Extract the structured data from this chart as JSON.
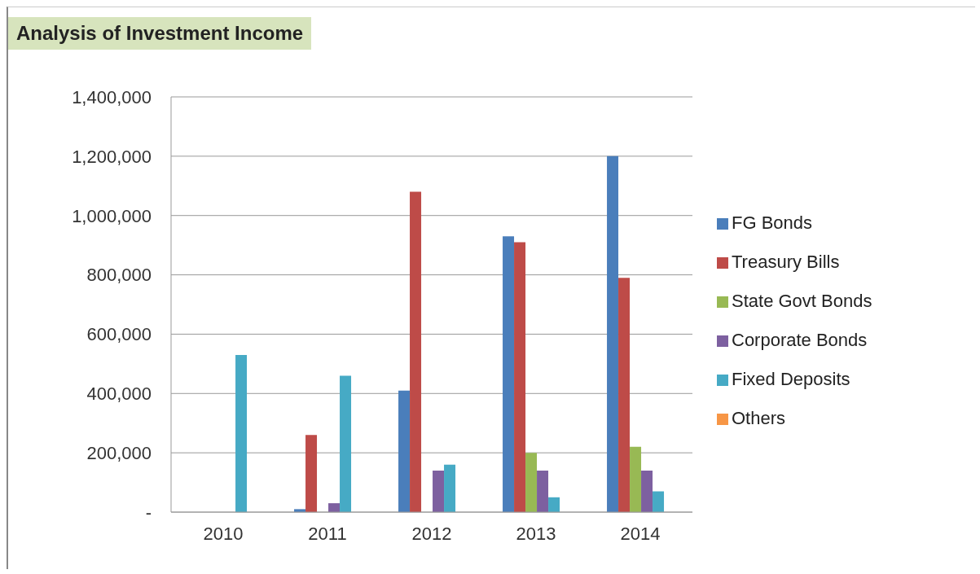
{
  "chart_data": {
    "type": "bar",
    "title": "Analysis of Investment Income",
    "categories": [
      "2010",
      "2011",
      "2012",
      "2013",
      "2014"
    ],
    "series": [
      {
        "name": "FG Bonds",
        "color": "#4a7ebb",
        "values": [
          0,
          10000,
          410000,
          930000,
          1200000
        ]
      },
      {
        "name": "Treasury Bills",
        "color": "#be4b48",
        "values": [
          0,
          260000,
          1080000,
          910000,
          790000
        ]
      },
      {
        "name": "State Govt Bonds",
        "color": "#98b954",
        "values": [
          0,
          0,
          0,
          200000,
          220000
        ]
      },
      {
        "name": "Corporate Bonds",
        "color": "#7d60a0",
        "values": [
          0,
          30000,
          140000,
          140000,
          140000
        ]
      },
      {
        "name": "Fixed Deposits",
        "color": "#46aac5",
        "values": [
          530000,
          460000,
          160000,
          50000,
          70000
        ]
      },
      {
        "name": "Others",
        "color": "#f79646",
        "values": [
          0,
          0,
          0,
          0,
          0
        ]
      }
    ],
    "ylim": [
      0,
      1400000
    ],
    "yticks": [
      {
        "value": 0,
        "label": "-"
      },
      {
        "value": 200000,
        "label": "200,000"
      },
      {
        "value": 400000,
        "label": "400,000"
      },
      {
        "value": 600000,
        "label": "600,000"
      },
      {
        "value": 800000,
        "label": "800,000"
      },
      {
        "value": 1000000,
        "label": "1,000,000"
      },
      {
        "value": 1200000,
        "label": "1,200,000"
      },
      {
        "value": 1400000,
        "label": "1,400,000"
      }
    ],
    "grid": "y",
    "legend": "right"
  }
}
